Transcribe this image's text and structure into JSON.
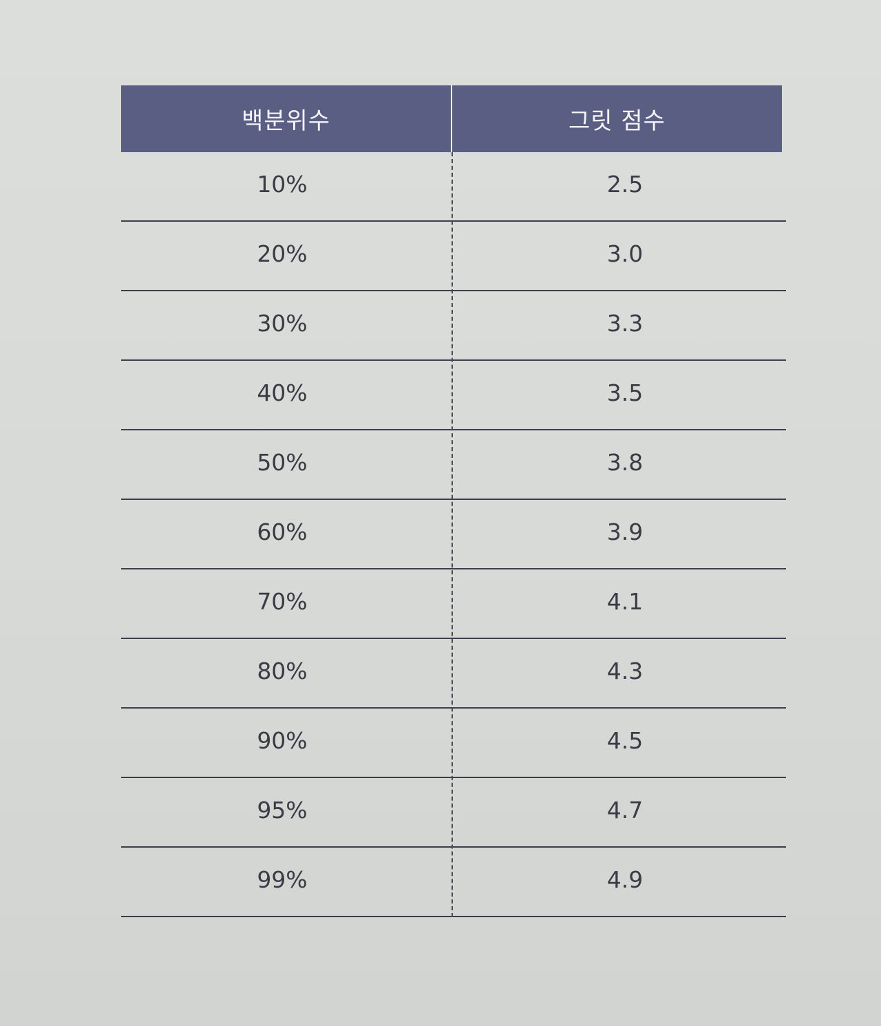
{
  "table": {
    "headers": [
      "백분위수",
      "그릿 점수"
    ],
    "rows": [
      [
        "10%",
        "2.5"
      ],
      [
        "20%",
        "3.0"
      ],
      [
        "30%",
        "3.3"
      ],
      [
        "40%",
        "3.5"
      ],
      [
        "50%",
        "3.8"
      ],
      [
        "60%",
        "3.9"
      ],
      [
        "70%",
        "4.1"
      ],
      [
        "80%",
        "4.3"
      ],
      [
        "90%",
        "4.5"
      ],
      [
        "95%",
        "4.7"
      ],
      [
        "99%",
        "4.9"
      ]
    ]
  },
  "colors": {
    "header_bg": "#5a5e82",
    "header_text": "#f4f4f8",
    "body_text": "#3a3b45",
    "page_bg": "#d9dbd9"
  }
}
